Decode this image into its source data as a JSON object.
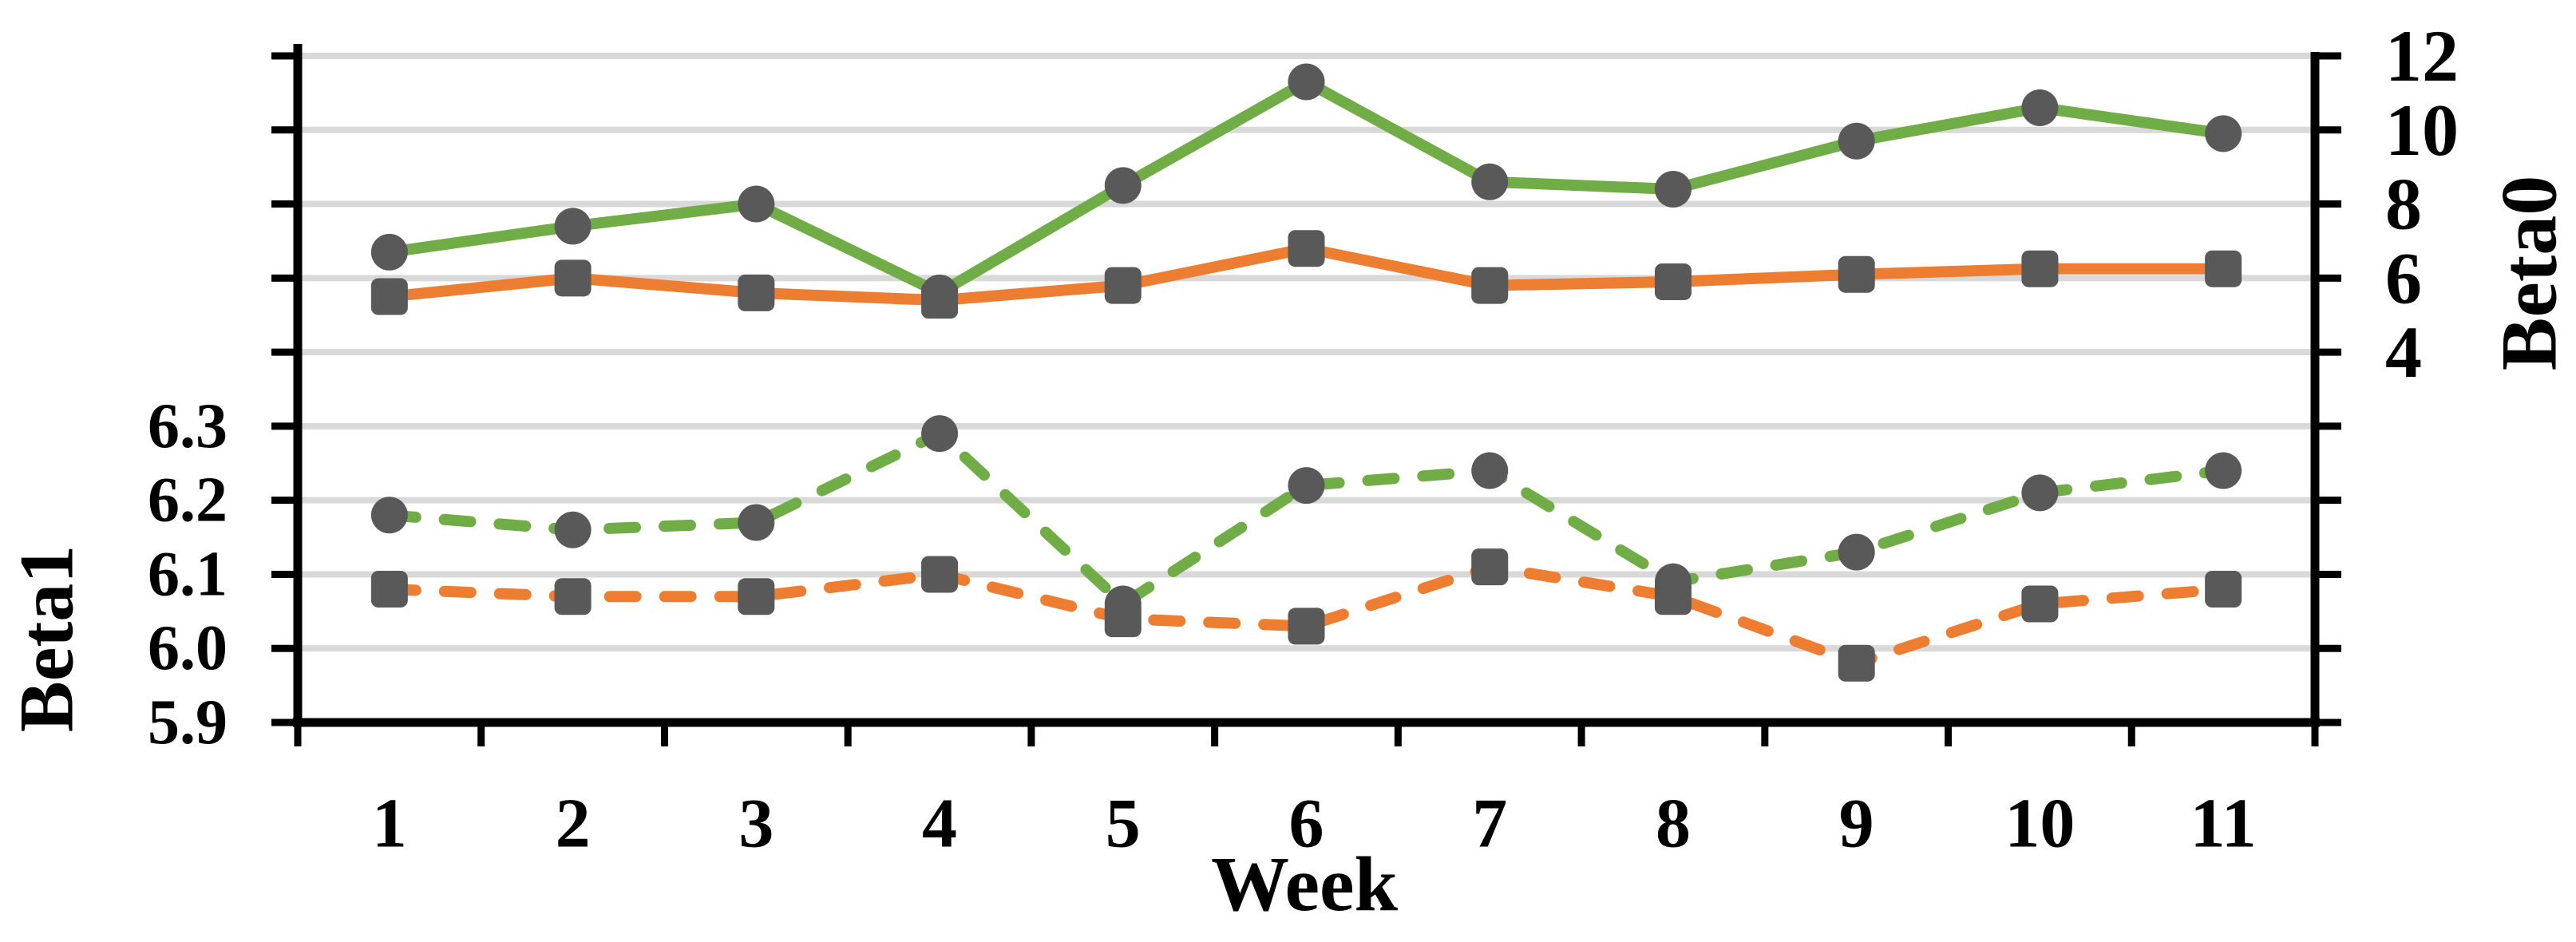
{
  "chart_data": {
    "type": "line",
    "title": "",
    "xlabel": "Week",
    "x_categories": [
      1,
      2,
      3,
      4,
      5,
      6,
      7,
      8,
      9,
      10,
      11
    ],
    "left_axis": {
      "title": "Beta1",
      "tick_labels": [
        "6.3",
        "6.2",
        "6.1",
        "6.0",
        "5.9"
      ],
      "tick_values": [
        6.3,
        6.2,
        6.1,
        6.0,
        5.9
      ],
      "range": [
        5.9,
        6.3
      ]
    },
    "right_axis": {
      "title": "Beta0",
      "tick_labels": [
        "12",
        "10",
        "8",
        "6",
        "4"
      ],
      "tick_values": [
        12,
        10,
        8,
        6,
        4
      ],
      "range": [
        4,
        12
      ]
    },
    "grid": true,
    "legend": "none",
    "series": [
      {
        "name": "Beta0 green (solid line, circle markers)",
        "axis": "right",
        "line": "solid",
        "marker": "circle",
        "color": "#70AD47",
        "values": [
          6.7,
          7.4,
          8.0,
          5.6,
          8.5,
          11.3,
          8.6,
          8.4,
          9.7,
          10.6,
          9.9
        ]
      },
      {
        "name": "Beta0 orange (solid line, square markers)",
        "axis": "right",
        "line": "solid",
        "marker": "square",
        "color": "#ED7D31",
        "values": [
          5.5,
          6.0,
          5.6,
          5.4,
          5.8,
          6.8,
          5.8,
          5.9,
          6.1,
          6.25,
          6.25
        ]
      },
      {
        "name": "Beta1 green (dashed line, circle markers)",
        "axis": "left",
        "line": "dashed",
        "marker": "circle",
        "color": "#70AD47",
        "values": [
          6.18,
          6.16,
          6.17,
          6.29,
          6.06,
          6.22,
          6.24,
          6.09,
          6.13,
          6.21,
          6.24
        ]
      },
      {
        "name": "Beta1 orange (dashed line, square markers)",
        "axis": "left",
        "line": "dashed",
        "marker": "square",
        "color": "#ED7D31",
        "values": [
          6.08,
          6.07,
          6.07,
          6.1,
          6.04,
          6.03,
          6.11,
          6.07,
          5.98,
          6.06,
          6.08
        ]
      }
    ],
    "colors": {
      "marker": "#595959",
      "gridline": "#D9D9D9",
      "axis": "#000000",
      "text": "#000000",
      "background": "#FFFFFF"
    }
  }
}
